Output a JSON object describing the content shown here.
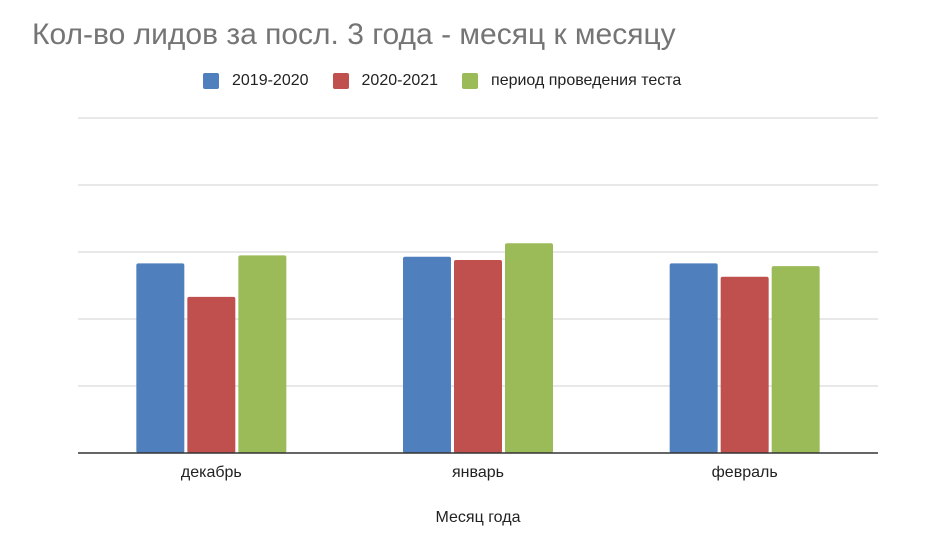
{
  "chart_data": {
    "type": "bar",
    "title": "Кол-во лидов за посл. 3 года - месяц к месяцу",
    "xlabel": "Месяц года",
    "ylabel": "",
    "categories": [
      "декабрь",
      "январь",
      "февраль"
    ],
    "series": [
      {
        "name": "2019-2020",
        "color": "#4f7fbd",
        "values": [
          2.83,
          2.93,
          2.83
        ]
      },
      {
        "name": "2020-2021",
        "color": "#c0504d",
        "values": [
          2.33,
          2.88,
          2.63
        ]
      },
      {
        "name": "период проведения теста",
        "color": "#9bbb59",
        "values": [
          2.95,
          3.13,
          2.79
        ]
      }
    ],
    "ylim": [
      0,
      5
    ],
    "yticks_shown": false,
    "grid": true,
    "legend_position": "top"
  }
}
